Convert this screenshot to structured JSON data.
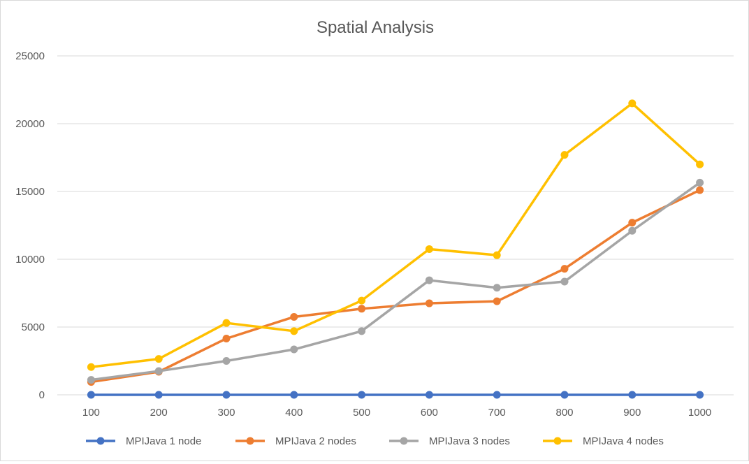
{
  "chart_data": {
    "type": "line",
    "title": "Spatial Analysis",
    "xlabel": "",
    "ylabel": "",
    "categories": [
      "100",
      "200",
      "300",
      "400",
      "500",
      "600",
      "700",
      "800",
      "900",
      "1000"
    ],
    "ylim": [
      0,
      25000
    ],
    "yticks": [
      "0",
      "5000",
      "10000",
      "15000",
      "20000",
      "25000"
    ],
    "grid": true,
    "legend_position": "bottom",
    "series": [
      {
        "name": "MPIJava 1 node",
        "color": "#4472C4",
        "values": [
          0,
          0,
          0,
          0,
          0,
          0,
          0,
          0,
          0,
          0
        ]
      },
      {
        "name": "MPIJava 2 nodes",
        "color": "#ED7D31",
        "values": [
          950,
          1700,
          4150,
          5750,
          6350,
          6750,
          6900,
          9300,
          12700,
          15100
        ]
      },
      {
        "name": "MPIJava 3 nodes",
        "color": "#A5A5A5",
        "values": [
          1100,
          1750,
          2500,
          3350,
          4700,
          8450,
          7900,
          8350,
          12100,
          15650
        ]
      },
      {
        "name": "MPIJava 4 nodes",
        "color": "#FFC000",
        "values": [
          2050,
          2650,
          5300,
          4700,
          6950,
          10750,
          10300,
          17700,
          21500,
          17000
        ]
      }
    ]
  }
}
